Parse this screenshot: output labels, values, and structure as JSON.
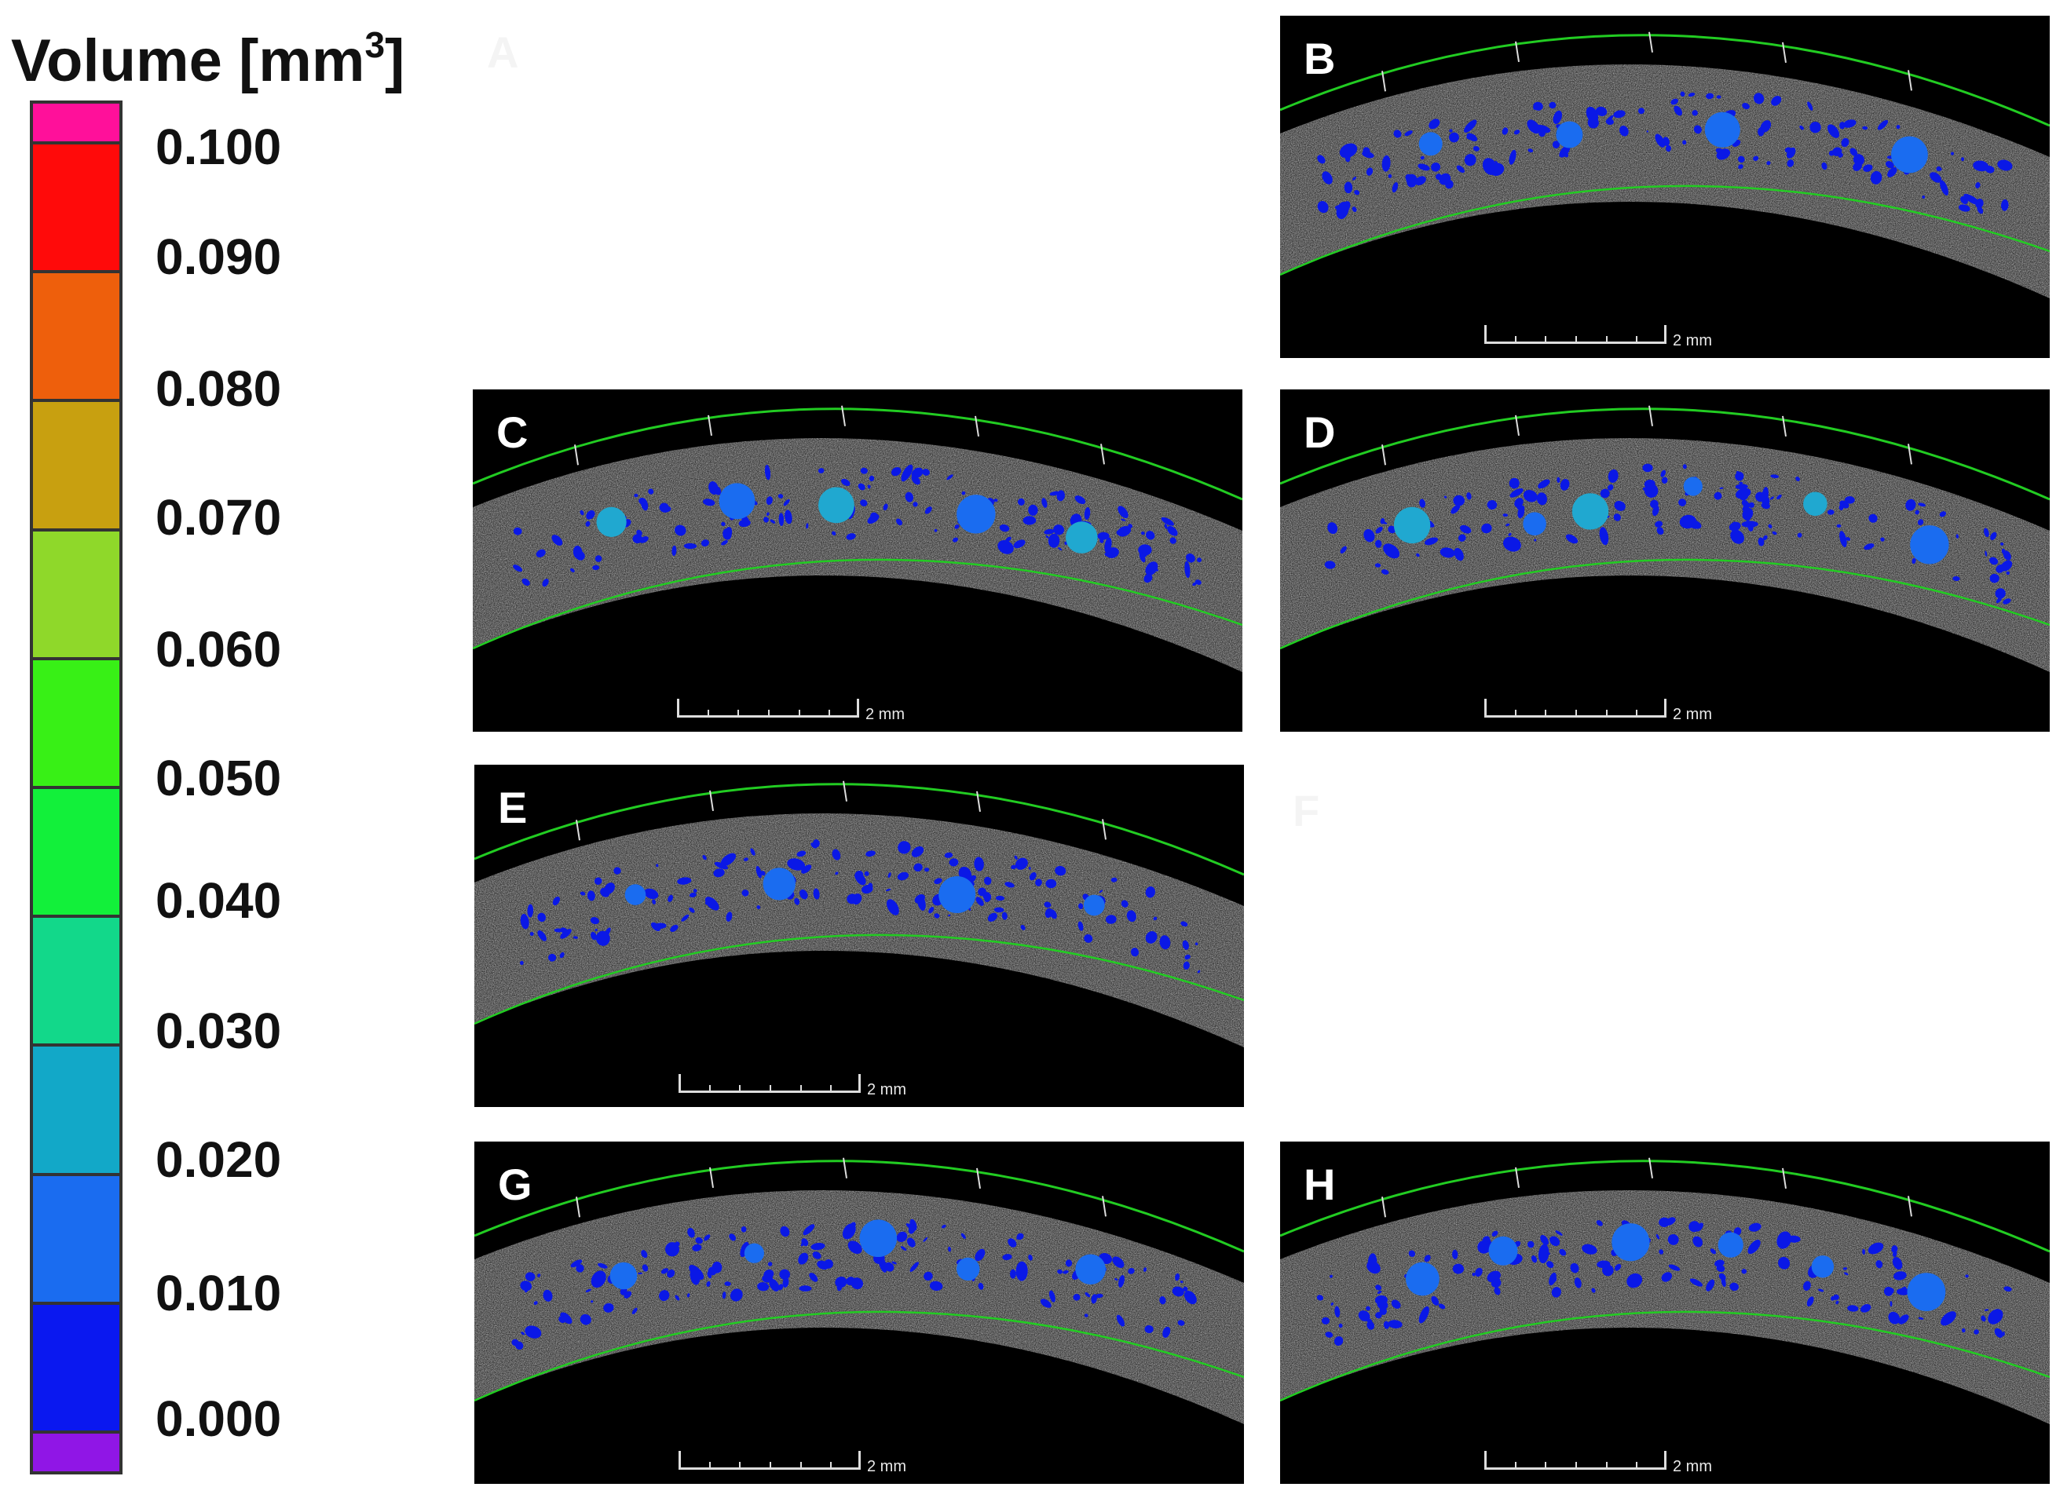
{
  "legend": {
    "title": "Volume [mm",
    "title_sup": "3",
    "title_end": "]",
    "ticks": [
      "0.100",
      "0.090",
      "0.080",
      "0.070",
      "0.060",
      "0.050",
      "0.040",
      "0.030",
      "0.020",
      "0.010",
      "0.000"
    ],
    "colors": [
      "#ff109a",
      "#ff0a0a",
      "#ee5f0c",
      "#c8a010",
      "#8fd82a",
      "#38f016",
      "#12f03a",
      "#12d88a",
      "#12a8c8",
      "#1a6cf0",
      "#0a18f0",
      "#9016e6"
    ]
  },
  "panels": [
    {
      "id": "A",
      "label": "A",
      "visible": false
    },
    {
      "id": "B",
      "label": "B",
      "scale": "2 mm"
    },
    {
      "id": "C",
      "label": "C",
      "scale": "2 mm"
    },
    {
      "id": "D",
      "label": "D",
      "scale": "2 mm"
    },
    {
      "id": "E",
      "label": "E",
      "scale": "2 mm"
    },
    {
      "id": "F",
      "label": "F",
      "visible": false
    },
    {
      "id": "G",
      "label": "G",
      "scale": "2 mm"
    },
    {
      "id": "H",
      "label": "H",
      "scale": "2 mm"
    }
  ],
  "pore_colors": {
    "small": "#0a18e6",
    "medium": "#1a6cf0",
    "large": "#20a8d0"
  }
}
